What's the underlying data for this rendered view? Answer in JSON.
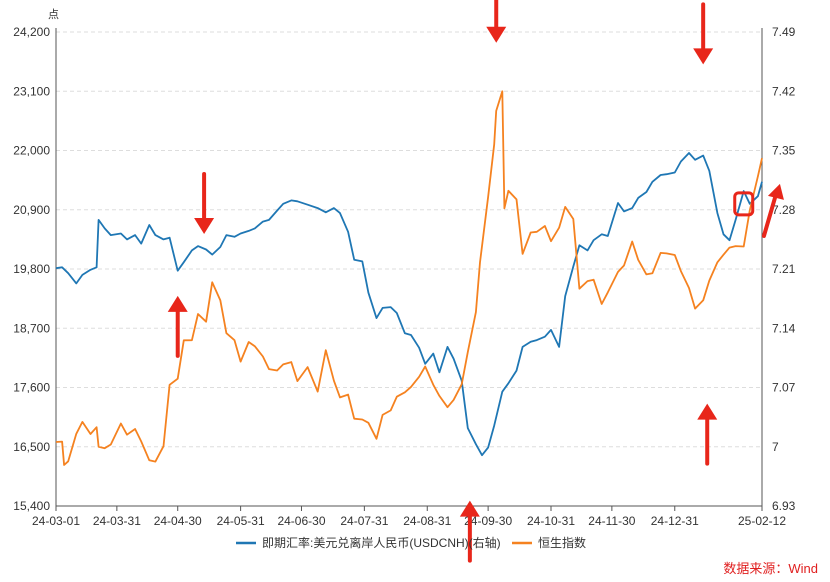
{
  "chart_data": {
    "type": "line",
    "left_unit": "点",
    "x_ticks": [
      "24-03-01",
      "24-03-31",
      "24-04-30",
      "24-05-31",
      "24-06-30",
      "24-07-31",
      "24-08-31",
      "24-09-30",
      "24-10-31",
      "24-11-30",
      "24-12-31",
      "25-02-12"
    ],
    "y_left": {
      "ticks": [
        "15,400",
        "16,500",
        "17,600",
        "18,700",
        "19,800",
        "20,900",
        "22,000",
        "23,100",
        "24,200"
      ],
      "range": [
        15400,
        24200
      ]
    },
    "y_right": {
      "ticks": [
        "6.93",
        "7",
        "7.07",
        "7.14",
        "7.21",
        "7.28",
        "7.35",
        "7.42",
        "7.49"
      ],
      "range": [
        6.93,
        7.49
      ]
    },
    "grid": "horizontal dashed",
    "legend_position": "bottom",
    "series": [
      {
        "name": "即期汇率:美元兑离岸人民币(USDCNH)(右轴)",
        "axis": "right",
        "color": "#1f77b4",
        "points": [
          [
            "24-03-01",
            7.211
          ],
          [
            "24-03-04",
            7.212
          ],
          [
            "24-03-07",
            7.205
          ],
          [
            "24-03-11",
            7.193
          ],
          [
            "24-03-14",
            7.203
          ],
          [
            "24-03-18",
            7.209
          ],
          [
            "24-03-21",
            7.212
          ],
          [
            "24-03-22",
            7.268
          ],
          [
            "24-03-25",
            7.258
          ],
          [
            "24-03-28",
            7.25
          ],
          [
            "24-04-02",
            7.252
          ],
          [
            "24-04-05",
            7.245
          ],
          [
            "24-04-09",
            7.25
          ],
          [
            "24-04-12",
            7.24
          ],
          [
            "24-04-16",
            7.262
          ],
          [
            "24-04-19",
            7.25
          ],
          [
            "24-04-23",
            7.245
          ],
          [
            "24-04-26",
            7.247
          ],
          [
            "24-04-30",
            7.208
          ],
          [
            "24-05-03",
            7.218
          ],
          [
            "24-05-07",
            7.232
          ],
          [
            "24-05-10",
            7.237
          ],
          [
            "24-05-14",
            7.233
          ],
          [
            "24-05-17",
            7.227
          ],
          [
            "24-05-21",
            7.236
          ],
          [
            "24-05-24",
            7.25
          ],
          [
            "24-05-28",
            7.248
          ],
          [
            "24-05-31",
            7.252
          ],
          [
            "24-06-04",
            7.255
          ],
          [
            "24-06-07",
            7.258
          ],
          [
            "24-06-11",
            7.266
          ],
          [
            "24-06-14",
            7.268
          ],
          [
            "24-06-18",
            7.279
          ],
          [
            "24-06-21",
            7.287
          ],
          [
            "24-06-25",
            7.291
          ],
          [
            "24-06-28",
            7.29
          ],
          [
            "24-07-03",
            7.286
          ],
          [
            "24-07-08",
            7.282
          ],
          [
            "24-07-12",
            7.277
          ],
          [
            "24-07-16",
            7.282
          ],
          [
            "24-07-19",
            7.276
          ],
          [
            "24-07-23",
            7.254
          ],
          [
            "24-07-26",
            7.221
          ],
          [
            "24-07-30",
            7.219
          ],
          [
            "24-08-02",
            7.182
          ],
          [
            "24-08-06",
            7.152
          ],
          [
            "24-08-09",
            7.164
          ],
          [
            "24-08-13",
            7.165
          ],
          [
            "24-08-16",
            7.158
          ],
          [
            "24-08-20",
            7.134
          ],
          [
            "24-08-23",
            7.132
          ],
          [
            "24-08-27",
            7.117
          ],
          [
            "24-08-30",
            7.098
          ],
          [
            "24-09-03",
            7.11
          ],
          [
            "24-09-06",
            7.088
          ],
          [
            "24-09-10",
            7.118
          ],
          [
            "24-09-13",
            7.104
          ],
          [
            "24-09-17",
            7.078
          ],
          [
            "24-09-20",
            7.022
          ],
          [
            "24-09-24",
            7.003
          ],
          [
            "24-09-27",
            6.99
          ],
          [
            "24-09-30",
            6.999
          ],
          [
            "24-10-03",
            7.025
          ],
          [
            "24-10-07",
            7.065
          ],
          [
            "24-10-10",
            7.075
          ],
          [
            "24-10-14",
            7.09
          ],
          [
            "24-10-17",
            7.118
          ],
          [
            "24-10-21",
            7.124
          ],
          [
            "24-10-24",
            7.126
          ],
          [
            "24-10-28",
            7.13
          ],
          [
            "24-10-31",
            7.138
          ],
          [
            "24-11-04",
            7.118
          ],
          [
            "24-11-07",
            7.178
          ],
          [
            "24-11-11",
            7.213
          ],
          [
            "24-11-14",
            7.238
          ],
          [
            "24-11-18",
            7.232
          ],
          [
            "24-11-21",
            7.244
          ],
          [
            "24-11-25",
            7.251
          ],
          [
            "24-11-28",
            7.249
          ],
          [
            "24-12-03",
            7.288
          ],
          [
            "24-12-06",
            7.278
          ],
          [
            "24-12-10",
            7.282
          ],
          [
            "24-12-13",
            7.294
          ],
          [
            "24-12-17",
            7.301
          ],
          [
            "24-12-20",
            7.313
          ],
          [
            "24-12-24",
            7.321
          ],
          [
            "24-12-27",
            7.322
          ],
          [
            "24-12-31",
            7.324
          ],
          [
            "25-01-03",
            7.337
          ],
          [
            "25-01-07",
            7.347
          ],
          [
            "25-01-10",
            7.339
          ],
          [
            "25-01-14",
            7.344
          ],
          [
            "25-01-17",
            7.326
          ],
          [
            "25-01-21",
            7.276
          ],
          [
            "25-01-24",
            7.251
          ],
          [
            "25-01-27",
            7.244
          ],
          [
            "25-01-30",
            7.268
          ],
          [
            "25-02-03",
            7.302
          ],
          [
            "25-02-06",
            7.287
          ],
          [
            "25-02-10",
            7.296
          ],
          [
            "25-02-12",
            7.313
          ]
        ]
      },
      {
        "name": "恒生指数",
        "axis": "left",
        "color": "#f58220",
        "points": [
          [
            "24-03-01",
            16589
          ],
          [
            "24-03-04",
            16595
          ],
          [
            "24-03-05",
            16162
          ],
          [
            "24-03-07",
            16230
          ],
          [
            "24-03-11",
            16740
          ],
          [
            "24-03-14",
            16962
          ],
          [
            "24-03-18",
            16737
          ],
          [
            "24-03-21",
            16863
          ],
          [
            "24-03-22",
            16499
          ],
          [
            "24-03-25",
            16473
          ],
          [
            "24-03-28",
            16541
          ],
          [
            "24-04-02",
            16931
          ],
          [
            "24-04-05",
            16724
          ],
          [
            "24-04-09",
            16829
          ],
          [
            "24-04-12",
            16600
          ],
          [
            "24-04-16",
            16249
          ],
          [
            "24-04-19",
            16224
          ],
          [
            "24-04-23",
            16511
          ],
          [
            "24-04-26",
            17651
          ],
          [
            "24-04-30",
            17763
          ],
          [
            "24-05-03",
            18476
          ],
          [
            "24-05-07",
            18479
          ],
          [
            "24-05-10",
            18964
          ],
          [
            "24-05-14",
            18821
          ],
          [
            "24-05-17",
            19553
          ],
          [
            "24-05-21",
            19220
          ],
          [
            "24-05-24",
            18609
          ],
          [
            "24-05-28",
            18478
          ],
          [
            "24-05-31",
            18080
          ],
          [
            "24-06-04",
            18444
          ],
          [
            "24-06-07",
            18367
          ],
          [
            "24-06-11",
            18176
          ],
          [
            "24-06-14",
            17942
          ],
          [
            "24-06-18",
            17915
          ],
          [
            "24-06-21",
            18029
          ],
          [
            "24-06-25",
            18072
          ],
          [
            "24-06-28",
            17719
          ],
          [
            "24-07-03",
            17978
          ],
          [
            "24-07-08",
            17524
          ],
          [
            "24-07-12",
            18293
          ],
          [
            "24-07-16",
            17727
          ],
          [
            "24-07-19",
            17417
          ],
          [
            "24-07-23",
            17469
          ],
          [
            "24-07-26",
            17021
          ],
          [
            "24-07-30",
            17005
          ],
          [
            "24-08-02",
            16945
          ],
          [
            "24-08-06",
            16647
          ],
          [
            "24-08-09",
            17091
          ],
          [
            "24-08-13",
            17174
          ],
          [
            "24-08-16",
            17430
          ],
          [
            "24-08-20",
            17511
          ],
          [
            "24-08-23",
            17612
          ],
          [
            "24-08-27",
            17798
          ],
          [
            "24-08-30",
            17989
          ],
          [
            "24-09-03",
            17651
          ],
          [
            "24-09-06",
            17444
          ],
          [
            "24-09-10",
            17234
          ],
          [
            "24-09-13",
            17369
          ],
          [
            "24-09-17",
            17660
          ],
          [
            "24-09-20",
            18258
          ],
          [
            "24-09-24",
            19000
          ],
          [
            "24-09-26",
            19924
          ],
          [
            "24-09-30",
            21134
          ],
          [
            "24-10-03",
            22113
          ],
          [
            "24-10-04",
            22736
          ],
          [
            "24-10-07",
            23100
          ],
          [
            "24-10-08",
            20927
          ],
          [
            "24-10-10",
            21251
          ],
          [
            "24-10-14",
            21092
          ],
          [
            "24-10-17",
            20080
          ],
          [
            "24-10-21",
            20478
          ],
          [
            "24-10-24",
            20490
          ],
          [
            "24-10-28",
            20599
          ],
          [
            "24-10-31",
            20317
          ],
          [
            "24-11-04",
            20567
          ],
          [
            "24-11-07",
            20953
          ],
          [
            "24-11-11",
            20728
          ],
          [
            "24-11-14",
            19435
          ],
          [
            "24-11-18",
            19576
          ],
          [
            "24-11-21",
            19601
          ],
          [
            "24-11-25",
            19151
          ],
          [
            "24-11-28",
            19366
          ],
          [
            "24-12-03",
            19746
          ],
          [
            "24-12-06",
            19865
          ],
          [
            "24-12-10",
            20311
          ],
          [
            "24-12-13",
            19971
          ],
          [
            "24-12-17",
            19700
          ],
          [
            "24-12-20",
            19721
          ],
          [
            "24-12-24",
            20098
          ],
          [
            "24-12-27",
            20090
          ],
          [
            "24-12-31",
            20060
          ],
          [
            "25-01-03",
            19761
          ],
          [
            "25-01-07",
            19447
          ],
          [
            "25-01-10",
            19064
          ],
          [
            "25-01-14",
            19219
          ],
          [
            "25-01-17",
            19584
          ],
          [
            "25-01-21",
            19925
          ],
          [
            "25-01-24",
            20066
          ],
          [
            "25-01-27",
            20197
          ],
          [
            "25-01-30",
            20225
          ],
          [
            "25-02-03",
            20217
          ],
          [
            "25-02-06",
            20891
          ],
          [
            "25-02-10",
            21521
          ],
          [
            "25-02-12",
            21857
          ]
        ]
      }
    ],
    "annotations": [
      {
        "shape": "arrow-down",
        "color": "#e8261a",
        "at": [
          "24-05-13",
          20450
        ]
      },
      {
        "shape": "arrow-up",
        "color": "#e8261a",
        "at": [
          "24-04-30",
          19300
        ]
      },
      {
        "shape": "arrow-down",
        "color": "#e8261a",
        "at": [
          "24-10-04",
          24000
        ]
      },
      {
        "shape": "arrow-up",
        "color": "#e8261a",
        "at": [
          "24-09-21",
          15500
        ]
      },
      {
        "shape": "arrow-down",
        "color": "#e8261a",
        "at": [
          "25-01-14",
          23600
        ]
      },
      {
        "shape": "arrow-up",
        "color": "#e8261a",
        "at": [
          "25-01-16",
          17300
        ]
      },
      {
        "shape": "box",
        "color": "#e8261a",
        "at": [
          "25-02-03",
          21010
        ]
      },
      {
        "shape": "arrow-up-right",
        "color": "#e8261a",
        "at": [
          "25-02-10",
          20600
        ]
      }
    ],
    "source_text": "数据来源：Wind"
  }
}
